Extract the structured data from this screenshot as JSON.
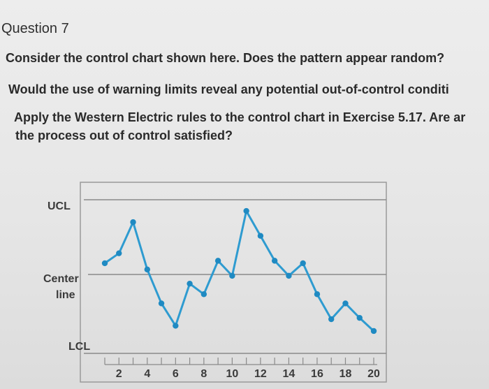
{
  "question": {
    "label": "Question 7",
    "line1": "Consider the control chart shown here. Does the pattern appear random?",
    "line2": "Would the use of warning limits reveal any potential out-of-control conditi",
    "line3": "Apply the Western Electric rules to the control chart in Exercise 5.17. Are ar",
    "line4": "the process out of control satisfied?"
  },
  "colors": {
    "series": "#2e9bd0",
    "marker": "#1f8ac2",
    "lines": "#8a8a8a",
    "frame": "#9a9a9a"
  },
  "chart_data": {
    "type": "line",
    "title": "",
    "xlabel": "",
    "ylabel": "",
    "reference_lines": [
      {
        "label": "UCL",
        "value": 3
      },
      {
        "label": "Center line",
        "value": 0
      },
      {
        "label": "LCL",
        "value": -3
      }
    ],
    "x_ticks": [
      2,
      4,
      6,
      8,
      10,
      12,
      14,
      16,
      18,
      20
    ],
    "xlim": [
      1,
      20
    ],
    "ylim": [
      -4,
      4
    ],
    "series": [
      {
        "x": [
          1,
          2,
          3,
          4,
          5,
          6,
          7,
          8,
          9,
          10,
          11,
          12,
          13,
          14,
          15,
          16,
          17,
          18,
          19,
          20
        ],
        "values": [
          0.45,
          0.85,
          2.1,
          0.2,
          -1.1,
          -1.95,
          -0.35,
          -0.75,
          0.55,
          -0.05,
          2.55,
          1.55,
          0.55,
          -0.05,
          0.45,
          -0.75,
          -1.7,
          -1.1,
          -1.65,
          -2.15
        ]
      }
    ]
  }
}
